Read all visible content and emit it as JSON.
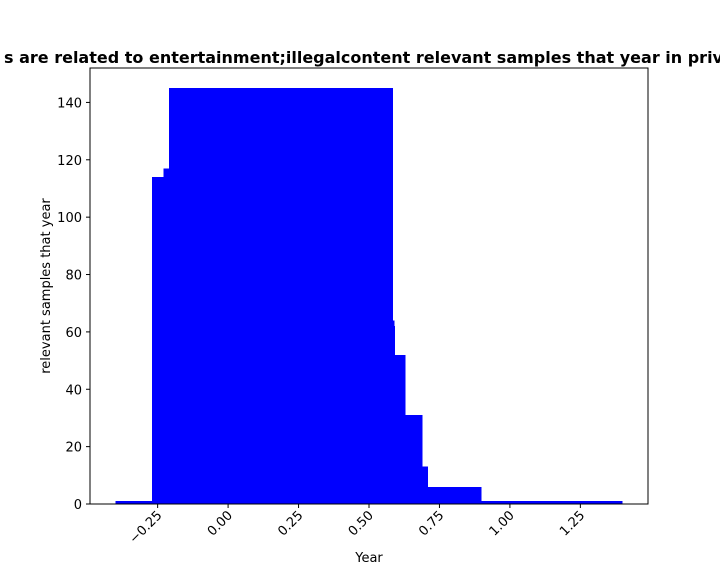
{
  "chart_data": {
    "type": "bar",
    "title": "s are related to entertainment;illegalcontent relevant samples that year in privacy",
    "xlabel": "Year",
    "ylabel": "relevant samples that year",
    "xlim": [
      -0.49,
      1.49
    ],
    "ylim": [
      0,
      152
    ],
    "grid": false,
    "color": "#0000ff",
    "x_ticks": [
      -0.25,
      0.0,
      0.25,
      0.5,
      0.75,
      1.0,
      1.25
    ],
    "x_tick_labels": [
      "−0.25",
      "0.00",
      "0.25",
      "0.50",
      "0.75",
      "1.00",
      "1.25"
    ],
    "y_ticks": [
      0,
      20,
      40,
      60,
      80,
      100,
      120,
      140
    ],
    "y_tick_labels": [
      "0",
      "20",
      "40",
      "60",
      "80",
      "100",
      "120",
      "140"
    ],
    "bars": [
      {
        "x0": -0.4,
        "x1": -0.27,
        "value": 1
      },
      {
        "x0": -0.27,
        "x1": -0.23,
        "value": 114
      },
      {
        "x0": -0.23,
        "x1": -0.21,
        "value": 117
      },
      {
        "x0": -0.21,
        "x1": 0.585,
        "value": 145
      },
      {
        "x0": 0.585,
        "x1": 0.59,
        "value": 64
      },
      {
        "x0": 0.59,
        "x1": 0.593,
        "value": 62
      },
      {
        "x0": 0.593,
        "x1": 0.63,
        "value": 52
      },
      {
        "x0": 0.63,
        "x1": 0.69,
        "value": 31
      },
      {
        "x0": 0.69,
        "x1": 0.71,
        "value": 13
      },
      {
        "x0": 0.71,
        "x1": 0.9,
        "value": 6
      },
      {
        "x0": 0.9,
        "x1": 1.4,
        "value": 1
      }
    ]
  }
}
